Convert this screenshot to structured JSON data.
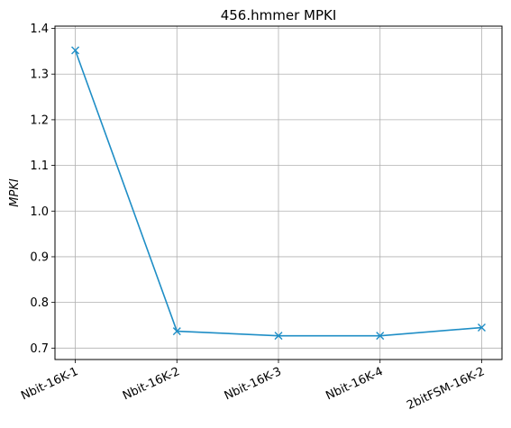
{
  "chart_data": {
    "type": "line",
    "title": "456.hmmer MPKI",
    "xlabel": "",
    "ylabel": "MPKI",
    "categories": [
      "Nbit-16K-1",
      "Nbit-16K-2",
      "Nbit-16K-3",
      "Nbit-16K-4",
      "2bitFSM-16K-2"
    ],
    "series": [
      {
        "values": [
          1.352,
          0.737,
          0.727,
          0.727,
          0.745
        ],
        "color": "#1f8ec6",
        "marker": "x"
      }
    ],
    "ylim": [
      0.675,
      1.405
    ],
    "yticks": [
      0.7,
      0.8,
      0.9,
      1.0,
      1.1,
      1.2,
      1.3,
      1.4
    ],
    "ytick_labels": [
      "0.7",
      "0.8",
      "0.9",
      "1.0",
      "1.1",
      "1.2",
      "1.3",
      "1.4"
    ],
    "grid": true,
    "xtick_rotation_deg": 25
  }
}
